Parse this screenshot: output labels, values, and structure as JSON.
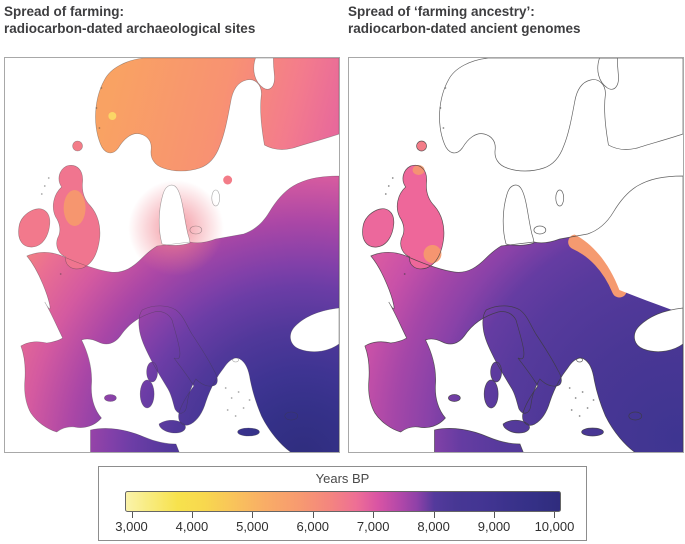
{
  "panels": [
    {
      "title_line1": "Spread of farming:",
      "title_line2": "radiocarbon-dated archaeological sites"
    },
    {
      "title_line1": "Spread of ‘farming ancestry’:",
      "title_line2": "radiocarbon-dated ancient genomes"
    }
  ],
  "legend": {
    "title": "Years BP",
    "ticks": [
      "3,000",
      "4,000",
      "5,000",
      "6,000",
      "7,000",
      "8,000",
      "9,000",
      "10,000"
    ]
  },
  "colormap": {
    "scheme": "plasma-reversed",
    "stops": [
      [
        0,
        "#fbf3ac"
      ],
      [
        0.05,
        "#f8ec83"
      ],
      [
        0.12,
        "#f7e24d"
      ],
      [
        0.18,
        "#f8d84e"
      ],
      [
        0.25,
        "#f9c35b"
      ],
      [
        0.32,
        "#f9ad66"
      ],
      [
        0.4,
        "#f79a70"
      ],
      [
        0.47,
        "#f4857f"
      ],
      [
        0.53,
        "#ee6f95"
      ],
      [
        0.58,
        "#d954a4"
      ],
      [
        0.63,
        "#b348a9"
      ],
      [
        0.67,
        "#8f41a8"
      ],
      [
        0.71,
        "#543a9c"
      ],
      [
        0.76,
        "#473794"
      ],
      [
        0.82,
        "#433593"
      ],
      [
        0.88,
        "#3b328c"
      ],
      [
        0.94,
        "#343086"
      ],
      [
        1,
        "#2f2c7d"
      ]
    ]
  },
  "map_colors": {
    "sites_radial": [
      [
        0,
        "#2f2d7e"
      ],
      [
        0.12,
        "#353189"
      ],
      [
        0.2,
        "#3e3492"
      ],
      [
        0.3,
        "#50389a"
      ],
      [
        0.4,
        "#6c3da6"
      ],
      [
        0.45,
        "#8140a9"
      ],
      [
        0.55,
        "#ab47a6"
      ],
      [
        0.65,
        "#d45aa0"
      ],
      [
        0.75,
        "#ea6f92"
      ],
      [
        0.85,
        "#f78e74"
      ],
      [
        0.95,
        "#f9a263"
      ],
      [
        1,
        "#f9a763"
      ]
    ],
    "sites_scandinavia": [
      [
        0,
        "#f9a263"
      ],
      [
        0.45,
        "#f89272"
      ],
      [
        0.75,
        "#f37b8d"
      ],
      [
        1,
        "#e4639f"
      ]
    ],
    "genomes_radial": [
      [
        0,
        "#3e3591"
      ],
      [
        0.3,
        "#4a3795"
      ],
      [
        0.5,
        "#563a9c"
      ],
      [
        0.62,
        "#653ca2"
      ],
      [
        0.72,
        "#8a42a8"
      ],
      [
        0.82,
        "#a647a8"
      ],
      [
        0.92,
        "#c851a8"
      ],
      [
        1,
        "#d85aa2"
      ]
    ],
    "britain_sites": "#f0758f",
    "ireland_sites": "#f2798c",
    "britain_genomes": "#ee679a",
    "ireland_genomes": "#ec689c",
    "britain_orange_patch": "#f69a6c",
    "baltic_fringe_orange": "#f59a70",
    "faroe_pink": "#f37c88",
    "norway_yellow_patch": "#fbdc66",
    "north_germany_pink_blob": "#f1818d",
    "coastline": "#3b3b3b",
    "sea": "#ffffff",
    "panel_border": "#a8a8a8"
  },
  "chart_data": {
    "type": "choropleth_map_pair",
    "colorbar": {
      "label": "Years BP",
      "min": 3000,
      "max": 10000,
      "tick_values": [
        3000,
        4000,
        5000,
        6000,
        7000,
        8000,
        9000,
        10000
      ],
      "scheme": "plasma-reversed (yellow = recent, dark navy = old)"
    },
    "maps": [
      {
        "title": "Spread of farming: radiocarbon-dated archaeological sites",
        "coverage": "entire European landmass coloured",
        "region_values_years_bp": {
          "Anatolia": 10000,
          "Greece": 9200,
          "Balkans": 8200,
          "Southern Italy": 8000,
          "Northern Italy": 7200,
          "Central Europe": 7000,
          "Eastern Europe": 6500,
          "France": 6500,
          "Central Iberia": 6800,
          "Western Iberia": 6200,
          "Britain and Ireland": 6000,
          "Northern Germany and Denmark area": 5800,
          "Southern Scandinavia": 5000,
          "Norway west coast": 4200,
          "Northern Scandinavia and NW Russia": 5200,
          "Baltic region": 6000
        }
      },
      {
        "title": "Spread of 'farming ancestry': radiocarbon-dated ancient genomes",
        "coverage": "Scandinavia, Finland, Denmark and far northeast shown as uncoloured outline (no data)",
        "region_values_years_bp": {
          "Anatolia": 9000,
          "Greece": 8800,
          "Balkans": 8500,
          "Italy": 8200,
          "Central Europe": 8000,
          "Northern Germany": 7500,
          "Eastern France": 7200,
          "Western France": 6800,
          "Central Iberia": 7500,
          "Western Iberia": 6500,
          "Britain and Ireland": 6000,
          "Southeast England": 5500,
          "East Baltic fringe": 5000
        }
      }
    ]
  }
}
